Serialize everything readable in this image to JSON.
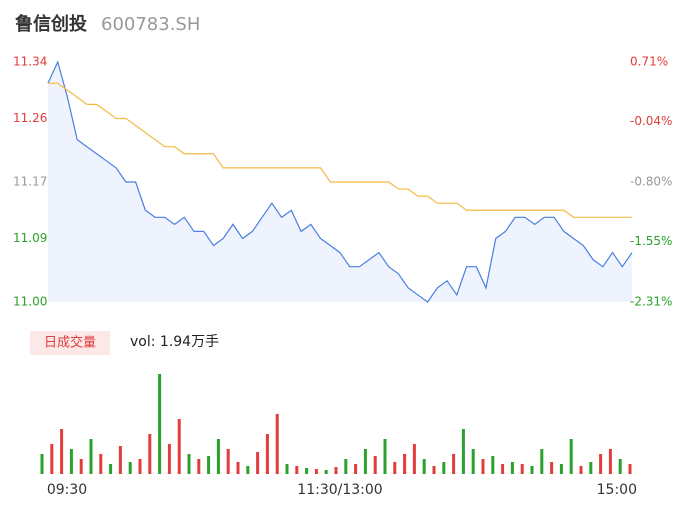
{
  "header": {
    "name": "鲁信创投",
    "code": "600783.SH"
  },
  "chart_data": [
    {
      "type": "line",
      "categories": [
        "09:30",
        null,
        null,
        null,
        null,
        null,
        null,
        null,
        null,
        null,
        null,
        null,
        null,
        null,
        null,
        null,
        null,
        null,
        null,
        null,
        null,
        null,
        null,
        null,
        null,
        null,
        null,
        null,
        null,
        null,
        "11:30/13:00",
        null,
        null,
        null,
        null,
        null,
        null,
        null,
        null,
        null,
        null,
        null,
        null,
        null,
        null,
        null,
        null,
        null,
        null,
        null,
        null,
        null,
        null,
        null,
        null,
        null,
        null,
        null,
        null,
        null,
        "15:00"
      ],
      "series": [
        {
          "color": "#4a7fe0",
          "values": [
            11.31,
            11.34,
            11.29,
            11.23,
            11.22,
            11.21,
            11.2,
            11.19,
            11.17,
            11.17,
            11.13,
            11.12,
            11.12,
            11.11,
            11.12,
            11.1,
            11.1,
            11.08,
            11.09,
            11.11,
            11.09,
            11.1,
            11.12,
            11.14,
            11.12,
            11.13,
            11.1,
            11.11,
            11.09,
            11.08,
            11.07,
            11.05,
            11.05,
            11.06,
            11.07,
            11.05,
            11.04,
            11.02,
            11.01,
            11.0,
            11.02,
            11.03,
            11.01,
            11.05,
            11.05,
            11.02,
            11.09,
            11.1,
            11.12,
            11.12,
            11.11,
            11.12,
            11.12,
            11.1,
            11.09,
            11.08,
            11.06,
            11.05,
            11.07,
            11.05,
            11.07
          ]
        },
        {
          "color": "#f5b942",
          "values": [
            11.31,
            11.31,
            11.3,
            11.29,
            11.28,
            11.28,
            11.27,
            11.26,
            11.26,
            11.25,
            11.24,
            11.23,
            11.22,
            11.22,
            11.21,
            11.21,
            11.21,
            11.21,
            11.19,
            11.19,
            11.19,
            11.19,
            11.19,
            11.19,
            11.19,
            11.19,
            11.19,
            11.19,
            11.19,
            11.17,
            11.17,
            11.17,
            11.17,
            11.17,
            11.17,
            11.17,
            11.16,
            11.16,
            11.15,
            11.15,
            11.14,
            11.14,
            11.14,
            11.13,
            11.13,
            11.13,
            11.13,
            11.13,
            11.13,
            11.13,
            11.13,
            11.13,
            11.13,
            11.13,
            11.12,
            11.12,
            11.12,
            11.12,
            11.12,
            11.12,
            11.12
          ]
        }
      ],
      "area_color": "#eef3fd",
      "ylim": [
        11,
        11.34
      ],
      "yticks": [
        11.34,
        11.26,
        11.17,
        11.09,
        {
          "value": 11,
          "label": "11.00"
        }
      ],
      "y2lim": [
        -2.31,
        0.71
      ],
      "y2ticks": [
        {
          "value": 0.71,
          "label": "0.71%"
        },
        {
          "value": -0.04,
          "label": "-0.04%"
        },
        {
          "value": -0.8,
          "label": "-0.80%"
        },
        {
          "value": -1.55,
          "label": "-1.55%"
        },
        {
          "value": -2.31,
          "label": "-2.31%"
        }
      ],
      "tick_colors": [
        "#e23c3c",
        "#e23c3c",
        "#999999",
        "#2aa12a",
        "#2aa12a"
      ]
    },
    {
      "type": "bar",
      "title": "日成交量",
      "subtitle": "vol: 1.94万手",
      "values": [
        20,
        30,
        45,
        25,
        15,
        35,
        20,
        10,
        28,
        12,
        15,
        40,
        100,
        30,
        55,
        20,
        15,
        18,
        35,
        25,
        12,
        8,
        22,
        40,
        60,
        10,
        8,
        6,
        5,
        4,
        7,
        15,
        10,
        25,
        18,
        35,
        12,
        20,
        30,
        15,
        8,
        12,
        20,
        45,
        25,
        15,
        18,
        10,
        12,
        10,
        8,
        25,
        12,
        10,
        35,
        8,
        12,
        20,
        25,
        15,
        10
      ],
      "colors": [
        "#2aa12a",
        "#e23c3c",
        "#e23c3c",
        "#2aa12a",
        "#e23c3c",
        "#2aa12a",
        "#e23c3c",
        "#2aa12a",
        "#e23c3c",
        "#2aa12a",
        "#e23c3c",
        "#e23c3c",
        "#2aa12a",
        "#e23c3c",
        "#e23c3c",
        "#2aa12a",
        "#e23c3c",
        "#2aa12a",
        "#2aa12a",
        "#e23c3c",
        "#e23c3c",
        "#2aa12a",
        "#e23c3c",
        "#e23c3c",
        "#e23c3c",
        "#2aa12a",
        "#e23c3c",
        "#2aa12a",
        "#e23c3c",
        "#2aa12a",
        "#e23c3c",
        "#2aa12a",
        "#e23c3c",
        "#2aa12a",
        "#e23c3c",
        "#2aa12a",
        "#e23c3c",
        "#e23c3c",
        "#e23c3c",
        "#2aa12a",
        "#e23c3c",
        "#2aa12a",
        "#e23c3c",
        "#2aa12a",
        "#2aa12a",
        "#e23c3c",
        "#2aa12a",
        "#e23c3c",
        "#2aa12a",
        "#e23c3c",
        "#2aa12a",
        "#2aa12a",
        "#e23c3c",
        "#2aa12a",
        "#2aa12a",
        "#e23c3c",
        "#2aa12a",
        "#e23c3c",
        "#e23c3c",
        "#2aa12a",
        "#e23c3c"
      ],
      "ylim": [
        0,
        100
      ]
    }
  ]
}
